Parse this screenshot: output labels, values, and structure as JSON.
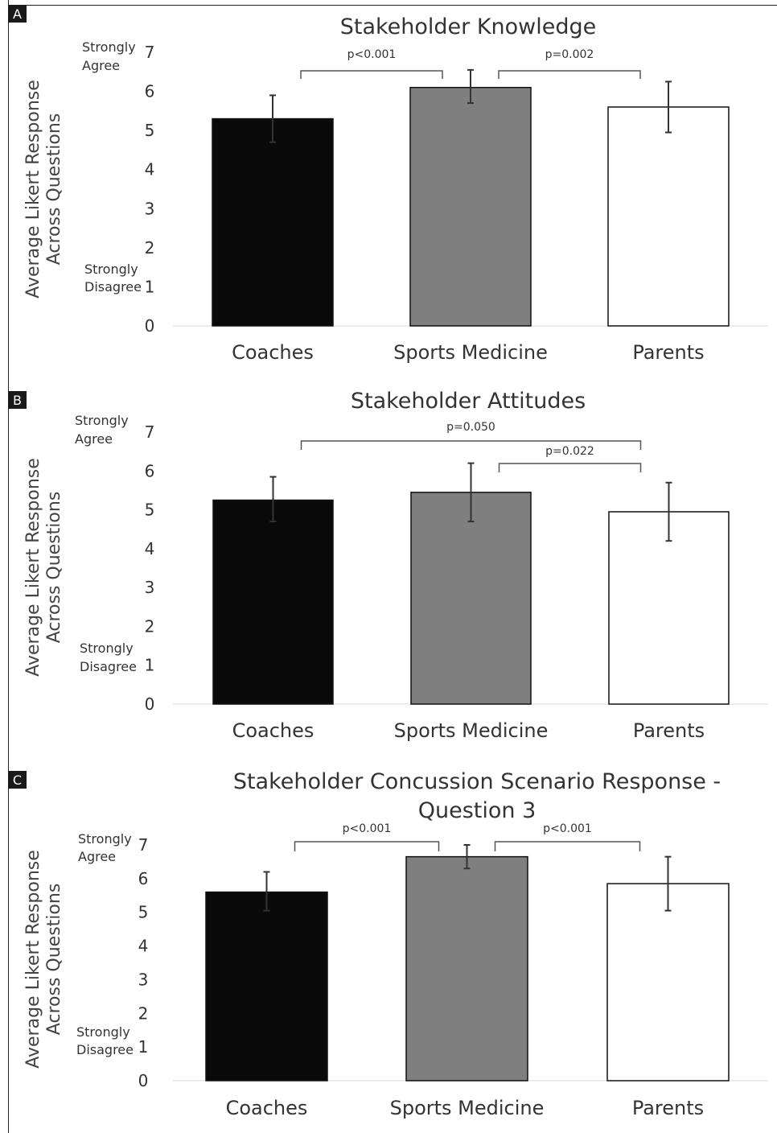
{
  "chart_data": [
    {
      "panel_label": "A",
      "type": "bar",
      "title": "Stakeholder Knowledge",
      "ylabel": "Average Likert Response Across Questions",
      "ylim": [
        0,
        7
      ],
      "yticks": [
        "0",
        "1",
        "2",
        "3",
        "4",
        "5",
        "6",
        "7"
      ],
      "anchor_top": "Strongly Agree",
      "anchor_bottom": "Strongly Disagree",
      "categories": [
        "Coaches",
        "Sports Medicine",
        "Parents"
      ],
      "values": [
        5.3,
        6.1,
        5.6
      ],
      "error_low": [
        4.7,
        5.7,
        4.95
      ],
      "error_high": [
        5.9,
        6.55,
        6.25
      ],
      "colors": [
        "#0a0a0a",
        "#7f7f7f",
        "#ffffff"
      ],
      "grid": false,
      "comparisons": [
        {
          "from": 0,
          "to": 1,
          "label": "p<0.001"
        },
        {
          "from": 1,
          "to": 2,
          "label": "p=0.002"
        }
      ]
    },
    {
      "panel_label": "B",
      "type": "bar",
      "title": "Stakeholder Attitudes",
      "ylabel": "Average Likert Response Across Questions",
      "ylim": [
        0,
        7
      ],
      "yticks": [
        "0",
        "1",
        "2",
        "3",
        "4",
        "5",
        "6",
        "7"
      ],
      "anchor_top": "Strongly Agree",
      "anchor_bottom": "Strongly Disagree",
      "categories": [
        "Coaches",
        "Sports Medicine",
        "Parents"
      ],
      "values": [
        5.25,
        5.45,
        4.95
      ],
      "error_low": [
        4.7,
        4.7,
        4.2
      ],
      "error_high": [
        5.85,
        6.2,
        5.7
      ],
      "colors": [
        "#0a0a0a",
        "#7f7f7f",
        "#ffffff"
      ],
      "grid": false,
      "comparisons": [
        {
          "from": 0,
          "to": 2,
          "label": "p=0.050"
        },
        {
          "from": 1,
          "to": 2,
          "label": "p=0.022"
        }
      ]
    },
    {
      "panel_label": "C",
      "type": "bar",
      "title": "Stakeholder Concussion Scenario Response - Question 3",
      "title_lines": [
        "Stakeholder Concussion Scenario Response -",
        "Question 3"
      ],
      "ylabel": "Average Likert Response Across Questions",
      "ylim": [
        0,
        7
      ],
      "yticks": [
        "0",
        "1",
        "2",
        "3",
        "4",
        "5",
        "6",
        "7"
      ],
      "anchor_top": "Strongly Agree",
      "anchor_bottom": "Strongly Disagree",
      "categories": [
        "Coaches",
        "Sports Medicine",
        "Parents"
      ],
      "values": [
        5.6,
        6.65,
        5.85
      ],
      "error_low": [
        5.05,
        6.3,
        5.05
      ],
      "error_high": [
        6.2,
        7.0,
        6.65
      ],
      "colors": [
        "#0a0a0a",
        "#7f7f7f",
        "#ffffff"
      ],
      "grid": false,
      "comparisons": [
        {
          "from": 0,
          "to": 1,
          "label": "p<0.001"
        },
        {
          "from": 1,
          "to": 2,
          "label": "p<0.001"
        }
      ]
    }
  ]
}
